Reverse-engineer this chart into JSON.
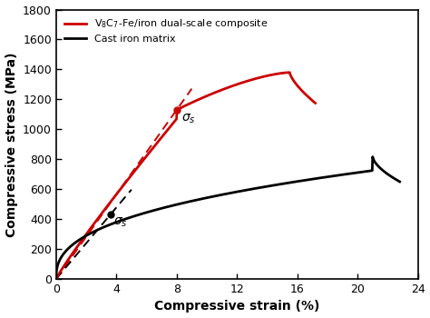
{
  "title": "",
  "xlabel": "Compressive strain (%)",
  "ylabel": "Compressive stress (MPa)",
  "xlim": [
    0,
    24
  ],
  "ylim": [
    0,
    1800
  ],
  "xticks": [
    0,
    4,
    8,
    12,
    16,
    20,
    24
  ],
  "yticks": [
    0,
    200,
    400,
    600,
    800,
    1000,
    1200,
    1400,
    1600,
    1800
  ],
  "red_curve_color": "#cc0000",
  "black_curve_color": "#000000",
  "background_color": "#ffffff",
  "sigma_s_red_x": 8.0,
  "sigma_s_red_y": 1130,
  "sigma_s_black_x": 3.6,
  "sigma_s_black_y": 430,
  "legend_red_label": "V$_8$C$_7$-Fe/iron dual-scale composite",
  "legend_black_label": "Cast iron matrix"
}
